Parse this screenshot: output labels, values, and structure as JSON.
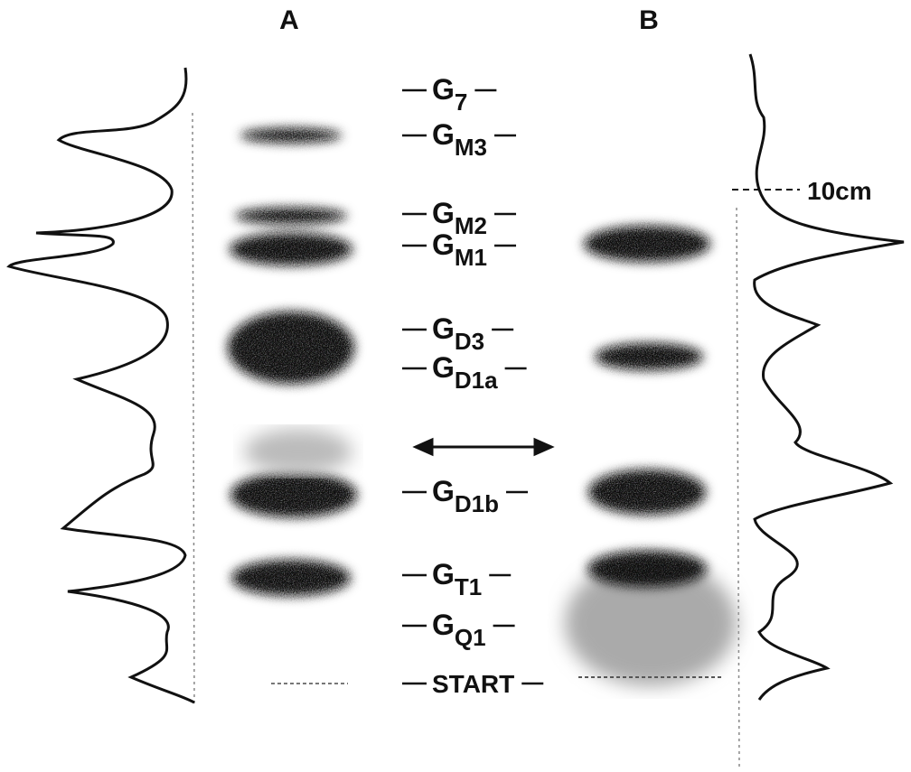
{
  "lanes": [
    "A",
    "B"
  ],
  "bands": [
    {
      "base": "G",
      "sub": "7"
    },
    {
      "base": "G",
      "sub": "M3"
    },
    {
      "base": "G",
      "sub": "M2"
    },
    {
      "base": "G",
      "sub": "M1"
    },
    {
      "base": "G",
      "sub": "D3"
    },
    {
      "base": "G",
      "sub": "D1a"
    },
    {
      "base": "G",
      "sub": "D1b"
    },
    {
      "base": "G",
      "sub": "T1"
    },
    {
      "base": "G",
      "sub": "Q1"
    },
    {
      "base": "START"
    }
  ],
  "scale_label": "10cm"
}
